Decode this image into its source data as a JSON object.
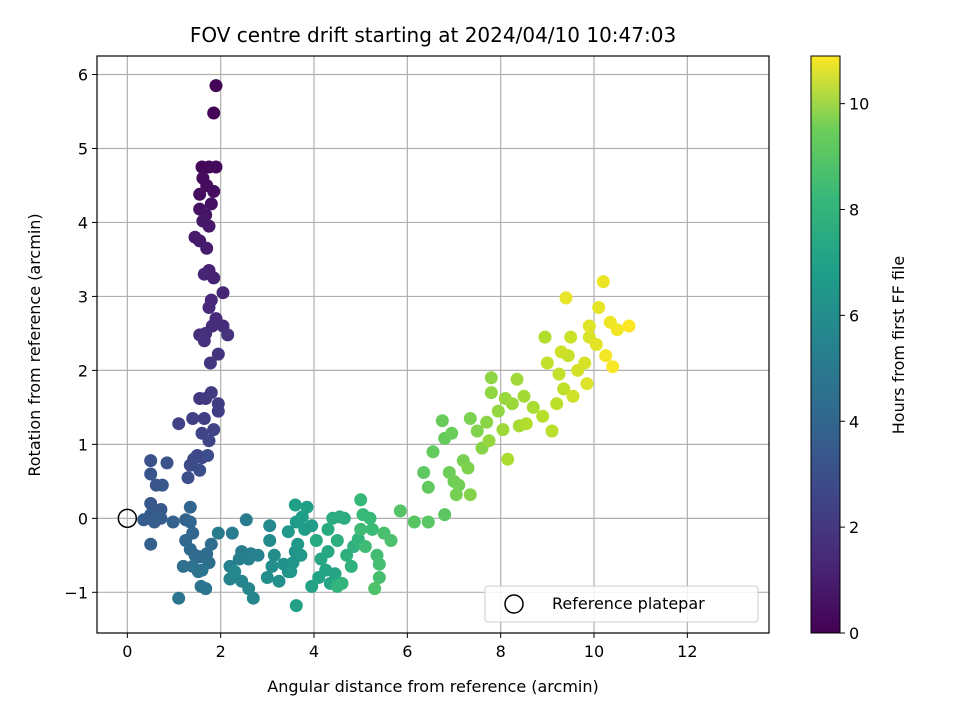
{
  "chart_data": {
    "type": "scatter",
    "title": "FOV centre drift starting at 2024/04/10 10:47:03",
    "xlabel": "Angular distance from reference (arcmin)",
    "ylabel": "Rotation from reference (arcmin)",
    "colorbar_label": "Hours from first FF file",
    "xlim": [
      -0.65,
      13.75
    ],
    "ylim": [
      -1.55,
      6.25
    ],
    "clim": [
      0,
      10.9
    ],
    "xticks": [
      0,
      2,
      4,
      6,
      8,
      10,
      12
    ],
    "yticks": [
      -1,
      0,
      1,
      2,
      3,
      4,
      5,
      6
    ],
    "cticks": [
      0,
      2,
      4,
      6,
      8,
      10
    ],
    "grid": true,
    "colormap": "viridis",
    "legend": {
      "placement": "lower-right",
      "entries": [
        "Reference platepar"
      ]
    },
    "reference_point": {
      "x": 0,
      "y": 0
    },
    "series": [
      {
        "points": [
          [
            1.9,
            5.85,
            0.05
          ],
          [
            1.85,
            5.48,
            0.1
          ],
          [
            1.6,
            4.75,
            0.15
          ],
          [
            1.75,
            4.75,
            0.2
          ],
          [
            1.9,
            4.75,
            0.25
          ],
          [
            1.62,
            4.6,
            0.3
          ],
          [
            1.7,
            4.5,
            0.35
          ],
          [
            1.85,
            4.42,
            0.4
          ],
          [
            1.55,
            4.38,
            0.45
          ],
          [
            1.8,
            4.25,
            0.5
          ],
          [
            1.55,
            4.18,
            0.55
          ],
          [
            1.68,
            4.1,
            0.6
          ],
          [
            1.62,
            4.02,
            0.65
          ],
          [
            1.75,
            3.95,
            0.7
          ],
          [
            1.45,
            3.8,
            0.75
          ],
          [
            1.55,
            3.75,
            0.8
          ],
          [
            1.7,
            3.65,
            0.85
          ],
          [
            1.75,
            3.35,
            1.0
          ],
          [
            1.85,
            3.25,
            1.05
          ],
          [
            1.65,
            3.3,
            1.1
          ],
          [
            2.05,
            3.05,
            1.15
          ],
          [
            1.8,
            2.95,
            1.2
          ],
          [
            1.75,
            2.85,
            1.25
          ],
          [
            1.9,
            2.7,
            1.3
          ],
          [
            1.82,
            2.6,
            1.35
          ],
          [
            2.05,
            2.6,
            1.4
          ],
          [
            1.68,
            2.5,
            1.45
          ],
          [
            1.55,
            2.48,
            1.5
          ],
          [
            1.65,
            2.4,
            1.55
          ],
          [
            2.15,
            2.48,
            1.6
          ],
          [
            1.95,
            2.22,
            1.65
          ],
          [
            1.78,
            2.1,
            1.7
          ],
          [
            1.55,
            1.62,
            1.8
          ],
          [
            1.68,
            1.62,
            1.85
          ],
          [
            1.8,
            1.7,
            1.9
          ],
          [
            1.95,
            1.55,
            1.95
          ],
          [
            1.95,
            1.45,
            2.0
          ],
          [
            1.65,
            1.35,
            2.05
          ],
          [
            1.4,
            1.35,
            2.1
          ],
          [
            1.1,
            1.28,
            2.15
          ],
          [
            1.85,
            1.2,
            2.2
          ],
          [
            1.6,
            1.15,
            2.25
          ],
          [
            1.75,
            1.05,
            2.3
          ],
          [
            1.5,
            0.85,
            2.35
          ],
          [
            1.6,
            0.82,
            2.4
          ],
          [
            1.42,
            0.8,
            2.45
          ],
          [
            1.35,
            0.72,
            2.5
          ],
          [
            1.72,
            0.85,
            2.55
          ],
          [
            1.55,
            0.65,
            2.6
          ],
          [
            1.3,
            0.55,
            2.65
          ],
          [
            0.5,
            0.78,
            2.75
          ],
          [
            0.85,
            0.75,
            2.8
          ],
          [
            0.5,
            0.6,
            2.85
          ],
          [
            0.62,
            0.45,
            2.9
          ],
          [
            0.75,
            0.45,
            2.95
          ],
          [
            0.5,
            0.2,
            3.0
          ],
          [
            0.72,
            0.12,
            3.05
          ],
          [
            0.5,
            0.05,
            3.1
          ],
          [
            0.35,
            -0.02,
            3.15
          ],
          [
            0.58,
            -0.05,
            3.2
          ],
          [
            0.72,
            0.0,
            3.25
          ],
          [
            0.5,
            -0.35,
            3.3
          ],
          [
            0.98,
            -0.05,
            3.4
          ],
          [
            1.25,
            -0.02,
            3.45
          ],
          [
            1.35,
            0.15,
            3.5
          ],
          [
            1.35,
            -0.05,
            3.55
          ],
          [
            1.4,
            -0.2,
            3.6
          ],
          [
            1.25,
            -0.3,
            3.65
          ],
          [
            1.35,
            -0.42,
            3.7
          ],
          [
            1.45,
            -0.5,
            3.75
          ],
          [
            1.55,
            -0.52,
            3.8
          ],
          [
            1.7,
            -0.48,
            3.85
          ],
          [
            1.8,
            -0.35,
            3.9
          ],
          [
            1.75,
            -0.6,
            3.95
          ],
          [
            1.2,
            -0.65,
            4.0
          ],
          [
            1.4,
            -0.65,
            4.05
          ],
          [
            1.52,
            -0.72,
            4.1
          ],
          [
            1.6,
            -0.7,
            4.15
          ],
          [
            1.58,
            -0.92,
            4.2
          ],
          [
            1.68,
            -0.95,
            4.25
          ],
          [
            1.1,
            -1.08,
            4.3
          ],
          [
            1.95,
            -0.2,
            4.45
          ],
          [
            2.25,
            -0.2,
            4.5
          ],
          [
            2.55,
            -0.02,
            4.55
          ],
          [
            2.45,
            -0.45,
            4.6
          ],
          [
            2.65,
            -0.48,
            4.65
          ],
          [
            2.4,
            -0.55,
            4.7
          ],
          [
            2.6,
            -0.55,
            4.75
          ],
          [
            2.2,
            -0.65,
            4.8
          ],
          [
            2.8,
            -0.5,
            4.85
          ],
          [
            2.2,
            -0.82,
            4.9
          ],
          [
            2.45,
            -0.85,
            4.95
          ],
          [
            2.6,
            -0.95,
            5.0
          ],
          [
            2.7,
            -1.08,
            5.05
          ],
          [
            2.3,
            -0.72,
            5.1
          ],
          [
            3.05,
            -0.1,
            5.2
          ],
          [
            3.05,
            -0.3,
            5.25
          ],
          [
            3.15,
            -0.5,
            5.3
          ],
          [
            3.1,
            -0.65,
            5.35
          ],
          [
            3.0,
            -0.8,
            5.4
          ],
          [
            3.25,
            -0.85,
            5.45
          ],
          [
            3.35,
            -0.62,
            5.5
          ],
          [
            3.45,
            -0.72,
            5.55
          ],
          [
            3.6,
            -0.45,
            5.6
          ],
          [
            3.55,
            -0.6,
            5.65
          ],
          [
            3.5,
            -0.72,
            5.7
          ],
          [
            3.72,
            -0.5,
            5.75
          ],
          [
            3.65,
            -0.35,
            5.8
          ],
          [
            3.45,
            -0.18,
            5.85
          ],
          [
            3.62,
            -0.05,
            5.9
          ],
          [
            3.8,
            -0.15,
            5.95
          ],
          [
            3.95,
            -0.1,
            6.0
          ],
          [
            3.75,
            0.02,
            6.05
          ],
          [
            3.6,
            0.18,
            6.1
          ],
          [
            3.85,
            0.15,
            6.15
          ],
          [
            3.62,
            -1.18,
            6.2
          ],
          [
            3.95,
            -0.92,
            6.25
          ],
          [
            4.1,
            -0.8,
            6.3
          ],
          [
            4.25,
            -0.7,
            6.35
          ],
          [
            4.45,
            -0.75,
            6.4
          ],
          [
            4.35,
            -0.88,
            6.45
          ],
          [
            4.15,
            -0.55,
            6.5
          ],
          [
            4.3,
            -0.45,
            6.55
          ],
          [
            4.05,
            -0.3,
            6.6
          ],
          [
            4.3,
            -0.15,
            6.65
          ],
          [
            4.4,
            0.0,
            6.7
          ],
          [
            4.55,
            0.02,
            6.75
          ],
          [
            4.65,
            0.0,
            6.8
          ],
          [
            4.5,
            -0.3,
            6.85
          ],
          [
            4.7,
            -0.5,
            6.9
          ],
          [
            4.8,
            -0.65,
            6.95
          ],
          [
            4.85,
            -0.38,
            7.0
          ],
          [
            4.95,
            -0.28,
            7.05
          ],
          [
            4.6,
            -0.88,
            7.1
          ],
          [
            4.5,
            -0.92,
            7.15
          ],
          [
            5.0,
            0.25,
            7.25
          ],
          [
            5.05,
            0.05,
            7.3
          ],
          [
            5.2,
            0.0,
            7.35
          ],
          [
            5.25,
            -0.15,
            7.4
          ],
          [
            5.0,
            -0.15,
            7.45
          ],
          [
            5.1,
            -0.38,
            7.5
          ],
          [
            5.35,
            -0.5,
            7.55
          ],
          [
            5.4,
            -0.62,
            7.6
          ],
          [
            5.4,
            -0.8,
            7.65
          ],
          [
            5.5,
            -0.2,
            7.7
          ],
          [
            5.65,
            -0.3,
            7.75
          ],
          [
            5.3,
            -0.95,
            7.8
          ],
          [
            5.85,
            0.1,
            7.95
          ],
          [
            6.15,
            -0.05,
            8.0
          ],
          [
            6.45,
            -0.05,
            8.05
          ],
          [
            6.8,
            0.05,
            8.1
          ],
          [
            6.35,
            0.62,
            8.15
          ],
          [
            6.45,
            0.42,
            8.2
          ],
          [
            6.55,
            0.9,
            8.25
          ],
          [
            6.8,
            1.08,
            8.3
          ],
          [
            6.75,
            1.32,
            8.35
          ],
          [
            6.95,
            1.15,
            8.4
          ],
          [
            6.9,
            0.62,
            8.45
          ],
          [
            7.0,
            0.5,
            8.5
          ],
          [
            7.1,
            0.45,
            8.55
          ],
          [
            7.05,
            0.32,
            8.6
          ],
          [
            7.2,
            0.78,
            8.65
          ],
          [
            7.35,
            1.35,
            8.7
          ],
          [
            7.3,
            0.68,
            8.75
          ],
          [
            7.5,
            1.18,
            8.8
          ],
          [
            7.35,
            0.32,
            8.85
          ],
          [
            7.6,
            0.95,
            8.9
          ],
          [
            7.7,
            1.3,
            8.95
          ],
          [
            7.8,
            1.9,
            9.0
          ],
          [
            7.8,
            1.7,
            9.05
          ],
          [
            7.95,
            1.45,
            9.1
          ],
          [
            7.75,
            1.05,
            9.15
          ],
          [
            8.1,
            1.62,
            9.2
          ],
          [
            8.25,
            1.55,
            9.25
          ],
          [
            8.05,
            1.2,
            9.3
          ],
          [
            8.35,
            1.88,
            9.35
          ],
          [
            8.5,
            1.65,
            9.4
          ],
          [
            8.4,
            1.25,
            9.45
          ],
          [
            8.7,
            1.5,
            9.5
          ],
          [
            8.15,
            0.8,
            9.55
          ],
          [
            8.55,
            1.28,
            9.6
          ],
          [
            8.95,
            2.45,
            9.65
          ],
          [
            8.9,
            1.38,
            9.7
          ],
          [
            9.1,
            1.18,
            9.75
          ],
          [
            9.2,
            1.55,
            9.8
          ],
          [
            9.35,
            1.75,
            9.85
          ],
          [
            9.0,
            2.1,
            9.9
          ],
          [
            9.25,
            1.95,
            9.95
          ],
          [
            9.45,
            2.2,
            10.0
          ],
          [
            9.5,
            2.45,
            10.05
          ],
          [
            9.3,
            2.25,
            10.1
          ],
          [
            9.55,
            1.65,
            10.15
          ],
          [
            9.65,
            2.0,
            10.2
          ],
          [
            9.8,
            2.1,
            10.25
          ],
          [
            9.9,
            2.45,
            10.3
          ],
          [
            9.85,
            1.82,
            10.35
          ],
          [
            9.9,
            2.6,
            10.4
          ],
          [
            10.05,
            2.35,
            10.45
          ],
          [
            10.1,
            2.85,
            10.5
          ],
          [
            9.4,
            2.98,
            10.55
          ],
          [
            10.2,
            3.2,
            10.6
          ],
          [
            10.35,
            2.65,
            10.65
          ],
          [
            10.5,
            2.55,
            10.7
          ],
          [
            10.25,
            2.2,
            10.75
          ],
          [
            10.4,
            2.05,
            10.8
          ],
          [
            10.75,
            2.6,
            10.9
          ]
        ]
      }
    ]
  }
}
